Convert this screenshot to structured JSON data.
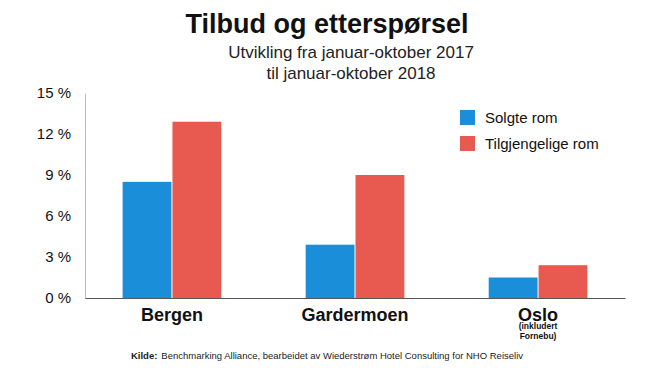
{
  "chart_data": {
    "type": "bar",
    "title": "Tilbud og etterspørsel",
    "subtitle": [
      "Utvikling fra januar-oktober 2017",
      "til januar-oktober 2018"
    ],
    "categories": [
      "Bergen",
      "Gardermoen",
      "Oslo"
    ],
    "annotations": [
      {
        "text": "(inkludert Fornebu)",
        "category": "Oslo"
      }
    ],
    "series": [
      {
        "name": "Solgte rom",
        "color": "#1a8ed8",
        "values": [
          8.5,
          3.9,
          1.5
        ]
      },
      {
        "name": "Tilgjengelige rom",
        "color": "#e85a50",
        "values": [
          12.9,
          9.0,
          2.4
        ]
      }
    ],
    "ylim": [
      0,
      15
    ],
    "yticks": [
      {
        "value": 0,
        "label": "0 %"
      },
      {
        "value": 3,
        "label": "3 %"
      },
      {
        "value": 6,
        "label": "6 %"
      },
      {
        "value": 9,
        "label": "9 %"
      },
      {
        "value": 12,
        "label": "12 %"
      },
      {
        "value": 15,
        "label": "15 %"
      }
    ],
    "grid": false,
    "legend": "top-right",
    "source_label": "Kilde:",
    "source": "Benchmarking Alliance, bearbeidet av Wiederstrøm Hotel Consulting for NHO Reiseliv"
  }
}
